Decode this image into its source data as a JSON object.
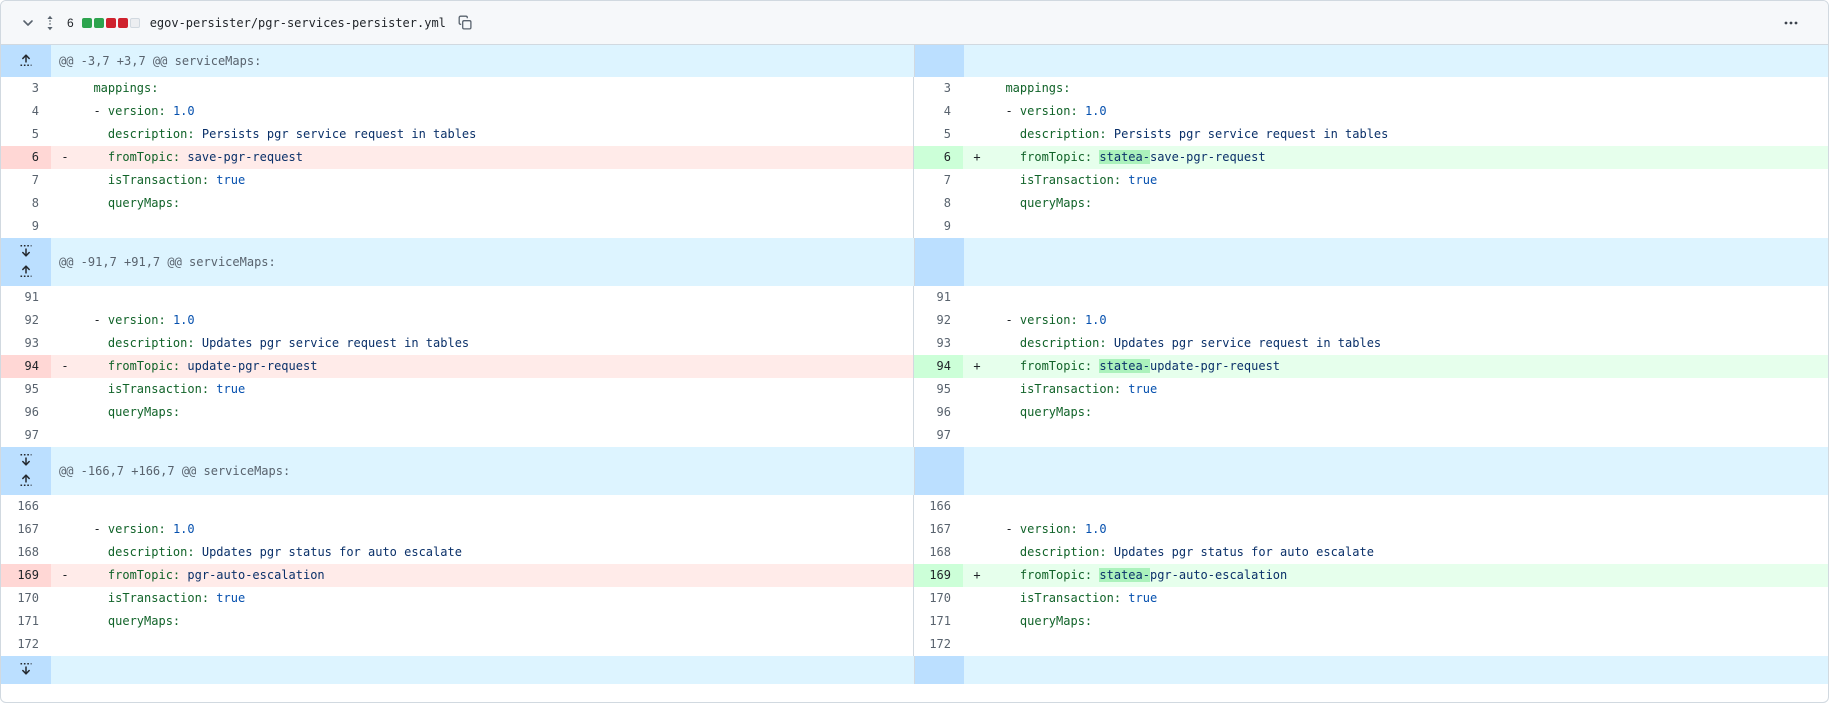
{
  "file_header": {
    "changes_count": "6",
    "diffstat_squares": [
      "added",
      "added",
      "deleted",
      "deleted",
      "neutral"
    ],
    "filename": "egov-persister/pgr-services-persister.yml",
    "icons": [
      "chevron-down-icon",
      "expand-collapse-icon",
      "copy-icon",
      "kebab-menu-icon"
    ]
  },
  "colors": {
    "addition_line_bg": "#e6ffec",
    "addition_num_bg": "#ccffd8",
    "addition_word_bg": "#abf2bc",
    "deletion_line_bg": "#ffebe9",
    "deletion_num_bg": "#ffd7d5",
    "hunk_line_bg": "#ddf4ff",
    "hunk_num_bg": "#bbdfff",
    "yaml_key": "#116329",
    "yaml_string": "#0a3069",
    "yaml_constant": "#0550ae",
    "diffstat_green": "#2da44e",
    "diffstat_red": "#cf222e"
  },
  "hunks": [
    {
      "header": "@@ -3,7 +3,7 @@ serviceMaps:",
      "expand_buttons": [
        "fold-up-icon"
      ],
      "band_height": 32,
      "rows": [
        {
          "l": {
            "n": "3",
            "kind": "ctx",
            "sign": "",
            "c": [
              [
                "p",
                "  "
              ],
              [
                "k",
                "mappings:"
              ]
            ]
          },
          "r": {
            "n": "3",
            "kind": "ctx",
            "sign": "",
            "c": [
              [
                "p",
                "  "
              ],
              [
                "k",
                "mappings:"
              ]
            ]
          }
        },
        {
          "l": {
            "n": "4",
            "kind": "ctx",
            "sign": "",
            "c": [
              [
                "p",
                "  - "
              ],
              [
                "k",
                "version:"
              ],
              [
                "p",
                " "
              ],
              [
                "n",
                "1.0"
              ]
            ]
          },
          "r": {
            "n": "4",
            "kind": "ctx",
            "sign": "",
            "c": [
              [
                "p",
                "  - "
              ],
              [
                "k",
                "version:"
              ],
              [
                "p",
                " "
              ],
              [
                "n",
                "1.0"
              ]
            ]
          }
        },
        {
          "l": {
            "n": "5",
            "kind": "ctx",
            "sign": "",
            "c": [
              [
                "p",
                "    "
              ],
              [
                "k",
                "description:"
              ],
              [
                "p",
                " "
              ],
              [
                "s",
                "Persists pgr service request in tables"
              ]
            ]
          },
          "r": {
            "n": "5",
            "kind": "ctx",
            "sign": "",
            "c": [
              [
                "p",
                "    "
              ],
              [
                "k",
                "description:"
              ],
              [
                "p",
                " "
              ],
              [
                "s",
                "Persists pgr service request in tables"
              ]
            ]
          }
        },
        {
          "l": {
            "n": "6",
            "kind": "del",
            "sign": "-",
            "c": [
              [
                "p",
                "    "
              ],
              [
                "k",
                "fromTopic:"
              ],
              [
                "p",
                " "
              ],
              [
                "s",
                "save-pgr-request"
              ]
            ]
          },
          "r": {
            "n": "6",
            "kind": "add",
            "sign": "+",
            "c": [
              [
                "p",
                "    "
              ],
              [
                "k",
                "fromTopic:"
              ],
              [
                "p",
                " "
              ],
              [
                "hl",
                "statea-"
              ],
              [
                "s",
                "save-pgr-request"
              ]
            ]
          }
        },
        {
          "l": {
            "n": "7",
            "kind": "ctx",
            "sign": "",
            "c": [
              [
                "p",
                "    "
              ],
              [
                "k",
                "isTransaction:"
              ],
              [
                "p",
                " "
              ],
              [
                "n",
                "true"
              ]
            ]
          },
          "r": {
            "n": "7",
            "kind": "ctx",
            "sign": "",
            "c": [
              [
                "p",
                "    "
              ],
              [
                "k",
                "isTransaction:"
              ],
              [
                "p",
                " "
              ],
              [
                "n",
                "true"
              ]
            ]
          }
        },
        {
          "l": {
            "n": "8",
            "kind": "ctx",
            "sign": "",
            "c": [
              [
                "p",
                "    "
              ],
              [
                "k",
                "queryMaps:"
              ]
            ]
          },
          "r": {
            "n": "8",
            "kind": "ctx",
            "sign": "",
            "c": [
              [
                "p",
                "    "
              ],
              [
                "k",
                "queryMaps:"
              ]
            ]
          }
        },
        {
          "l": {
            "n": "9",
            "kind": "ctx",
            "sign": "",
            "c": []
          },
          "r": {
            "n": "9",
            "kind": "ctx",
            "sign": "",
            "c": []
          }
        }
      ]
    },
    {
      "header": "@@ -91,7 +91,7 @@ serviceMaps:",
      "expand_buttons": [
        "fold-down-icon",
        "fold-up-icon"
      ],
      "band_height": 48,
      "rows": [
        {
          "l": {
            "n": "91",
            "kind": "ctx",
            "sign": "",
            "c": []
          },
          "r": {
            "n": "91",
            "kind": "ctx",
            "sign": "",
            "c": []
          }
        },
        {
          "l": {
            "n": "92",
            "kind": "ctx",
            "sign": "",
            "c": [
              [
                "p",
                "  - "
              ],
              [
                "k",
                "version:"
              ],
              [
                "p",
                " "
              ],
              [
                "n",
                "1.0"
              ]
            ]
          },
          "r": {
            "n": "92",
            "kind": "ctx",
            "sign": "",
            "c": [
              [
                "p",
                "  - "
              ],
              [
                "k",
                "version:"
              ],
              [
                "p",
                " "
              ],
              [
                "n",
                "1.0"
              ]
            ]
          }
        },
        {
          "l": {
            "n": "93",
            "kind": "ctx",
            "sign": "",
            "c": [
              [
                "p",
                "    "
              ],
              [
                "k",
                "description:"
              ],
              [
                "p",
                " "
              ],
              [
                "s",
                "Updates pgr service request in tables"
              ]
            ]
          },
          "r": {
            "n": "93",
            "kind": "ctx",
            "sign": "",
            "c": [
              [
                "p",
                "    "
              ],
              [
                "k",
                "description:"
              ],
              [
                "p",
                " "
              ],
              [
                "s",
                "Updates pgr service request in tables"
              ]
            ]
          }
        },
        {
          "l": {
            "n": "94",
            "kind": "del",
            "sign": "-",
            "c": [
              [
                "p",
                "    "
              ],
              [
                "k",
                "fromTopic:"
              ],
              [
                "p",
                " "
              ],
              [
                "s",
                "update-pgr-request"
              ]
            ]
          },
          "r": {
            "n": "94",
            "kind": "add",
            "sign": "+",
            "c": [
              [
                "p",
                "    "
              ],
              [
                "k",
                "fromTopic:"
              ],
              [
                "p",
                " "
              ],
              [
                "hl",
                "statea-"
              ],
              [
                "s",
                "update-pgr-request"
              ]
            ]
          }
        },
        {
          "l": {
            "n": "95",
            "kind": "ctx",
            "sign": "",
            "c": [
              [
                "p",
                "    "
              ],
              [
                "k",
                "isTransaction:"
              ],
              [
                "p",
                " "
              ],
              [
                "n",
                "true"
              ]
            ]
          },
          "r": {
            "n": "95",
            "kind": "ctx",
            "sign": "",
            "c": [
              [
                "p",
                "    "
              ],
              [
                "k",
                "isTransaction:"
              ],
              [
                "p",
                " "
              ],
              [
                "n",
                "true"
              ]
            ]
          }
        },
        {
          "l": {
            "n": "96",
            "kind": "ctx",
            "sign": "",
            "c": [
              [
                "p",
                "    "
              ],
              [
                "k",
                "queryMaps:"
              ]
            ]
          },
          "r": {
            "n": "96",
            "kind": "ctx",
            "sign": "",
            "c": [
              [
                "p",
                "    "
              ],
              [
                "k",
                "queryMaps:"
              ]
            ]
          }
        },
        {
          "l": {
            "n": "97",
            "kind": "ctx",
            "sign": "",
            "c": []
          },
          "r": {
            "n": "97",
            "kind": "ctx",
            "sign": "",
            "c": []
          }
        }
      ]
    },
    {
      "header": "@@ -166,7 +166,7 @@ serviceMaps:",
      "expand_buttons": [
        "fold-down-icon",
        "fold-up-icon"
      ],
      "band_height": 48,
      "rows": [
        {
          "l": {
            "n": "166",
            "kind": "ctx",
            "sign": "",
            "c": []
          },
          "r": {
            "n": "166",
            "kind": "ctx",
            "sign": "",
            "c": []
          }
        },
        {
          "l": {
            "n": "167",
            "kind": "ctx",
            "sign": "",
            "c": [
              [
                "p",
                "  - "
              ],
              [
                "k",
                "version:"
              ],
              [
                "p",
                " "
              ],
              [
                "n",
                "1.0"
              ]
            ]
          },
          "r": {
            "n": "167",
            "kind": "ctx",
            "sign": "",
            "c": [
              [
                "p",
                "  - "
              ],
              [
                "k",
                "version:"
              ],
              [
                "p",
                " "
              ],
              [
                "n",
                "1.0"
              ]
            ]
          }
        },
        {
          "l": {
            "n": "168",
            "kind": "ctx",
            "sign": "",
            "c": [
              [
                "p",
                "    "
              ],
              [
                "k",
                "description:"
              ],
              [
                "p",
                " "
              ],
              [
                "s",
                "Updates pgr status for auto escalate"
              ]
            ]
          },
          "r": {
            "n": "168",
            "kind": "ctx",
            "sign": "",
            "c": [
              [
                "p",
                "    "
              ],
              [
                "k",
                "description:"
              ],
              [
                "p",
                " "
              ],
              [
                "s",
                "Updates pgr status for auto escalate"
              ]
            ]
          }
        },
        {
          "l": {
            "n": "169",
            "kind": "del",
            "sign": "-",
            "c": [
              [
                "p",
                "    "
              ],
              [
                "k",
                "fromTopic:"
              ],
              [
                "p",
                " "
              ],
              [
                "s",
                "pgr-auto-escalation"
              ]
            ]
          },
          "r": {
            "n": "169",
            "kind": "add",
            "sign": "+",
            "c": [
              [
                "p",
                "    "
              ],
              [
                "k",
                "fromTopic:"
              ],
              [
                "p",
                " "
              ],
              [
                "hl",
                "statea-"
              ],
              [
                "s",
                "pgr-auto-escalation"
              ]
            ]
          }
        },
        {
          "l": {
            "n": "170",
            "kind": "ctx",
            "sign": "",
            "c": [
              [
                "p",
                "    "
              ],
              [
                "k",
                "isTransaction:"
              ],
              [
                "p",
                " "
              ],
              [
                "n",
                "true"
              ]
            ]
          },
          "r": {
            "n": "170",
            "kind": "ctx",
            "sign": "",
            "c": [
              [
                "p",
                "    "
              ],
              [
                "k",
                "isTransaction:"
              ],
              [
                "p",
                " "
              ],
              [
                "n",
                "true"
              ]
            ]
          }
        },
        {
          "l": {
            "n": "171",
            "kind": "ctx",
            "sign": "",
            "c": [
              [
                "p",
                "    "
              ],
              [
                "k",
                "queryMaps:"
              ]
            ]
          },
          "r": {
            "n": "171",
            "kind": "ctx",
            "sign": "",
            "c": [
              [
                "p",
                "    "
              ],
              [
                "k",
                "queryMaps:"
              ]
            ]
          }
        },
        {
          "l": {
            "n": "172",
            "kind": "ctx",
            "sign": "",
            "c": []
          },
          "r": {
            "n": "172",
            "kind": "ctx",
            "sign": "",
            "c": []
          }
        }
      ]
    }
  ],
  "bottom_expander": {
    "expand_buttons": [
      "fold-down-icon"
    ],
    "band_height": 28
  }
}
